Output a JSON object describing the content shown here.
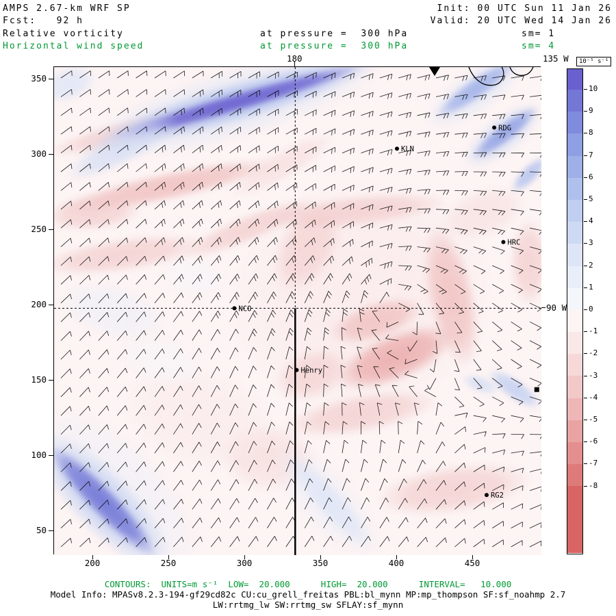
{
  "accent_colors": {
    "green": "#009933",
    "black": "#000000"
  },
  "header": {
    "line1_left": "AMPS 2.67-km WRF SP",
    "line2_left": "Fcst:   92 h",
    "line1_right": "Init: 00 UTC Sun 11 Jan 26",
    "line2_right": "Valid: 20 UTC Wed 14 Jan 26",
    "field1": {
      "label": "Relative vorticity",
      "pressure": "at pressure =  300 hPa",
      "sm": "sm= 1"
    },
    "field2": {
      "label": "Horizontal wind speed",
      "pressure": "at pressure =  300 hPa",
      "sm": "sm= 4"
    }
  },
  "footer": {
    "contours_line": "CONTOURS:  UNITS=m s⁻¹  LOW=  20.000      HIGH=  20.000      INTERVAL=   10.000",
    "model_info_line1": "Model Info: MPASv8.2.3-194-gf29cd82c CU:cu_grell_freitas PBL:bl_mynn MP:mp_thompson SF:sf_noahmp 2.7",
    "model_info_line2": "LW:rrtmg_lw SW:rrtmg_sw SFLAY:sf_mynn"
  },
  "chart_data": {
    "type": "heatmap",
    "title": "Relative vorticity (shaded, 10⁻⁵ s⁻¹) with horizontal wind speed barbs at 300 hPa",
    "x_ticks": [
      200,
      250,
      300,
      350,
      400,
      450
    ],
    "y_ticks": [
      50,
      100,
      150,
      200,
      250,
      300,
      350
    ],
    "x_range": [
      174,
      495
    ],
    "y_range": [
      34,
      358
    ],
    "grid": false,
    "meridians": {
      "top_label": "180",
      "top_label_x": 333,
      "topright_label": "135 W",
      "right_label": "90 W",
      "right_label_y": 198,
      "dashed_vertical_x": 333,
      "dashed_horizontal_y": 198,
      "solid_segment": {
        "x": 333,
        "y_from": 34,
        "y_to": 198
      }
    },
    "colorbar": {
      "title": "10⁻⁵ s⁻¹",
      "tick_labels": [
        10,
        9,
        8,
        7,
        6,
        5,
        4,
        3,
        2,
        1,
        0,
        -1,
        -2,
        -3,
        -4,
        -5,
        -6,
        -7,
        -8
      ],
      "colors": [
        "#6a60cf",
        "#7377d6",
        "#7f8bdc",
        "#8f9fe3",
        "#9fb0e8",
        "#afc0ed",
        "#bfcef1",
        "#cedaf4",
        "#dde5f7",
        "#e9eefa",
        "#f4f6fc",
        "#fdf4f4",
        "#fae7e7",
        "#f6d8d8",
        "#f2c8c8",
        "#eeb6b6",
        "#e9a3a3",
        "#e48f8f",
        "#df7a7a",
        "#d96464"
      ]
    },
    "stations": [
      {
        "name": "RDG",
        "x": 464,
        "y": 318,
        "shape": "circle"
      },
      {
        "name": "KLN",
        "x": 400,
        "y": 304,
        "shape": "circle"
      },
      {
        "name": "HRC",
        "x": 470,
        "y": 242,
        "shape": "circle"
      },
      {
        "name": "NCO",
        "x": 293,
        "y": 198,
        "shape": "circle"
      },
      {
        "name": "Henry",
        "x": 334,
        "y": 157,
        "shape": "circle"
      },
      {
        "name": "RG2",
        "x": 459,
        "y": 74,
        "shape": "circle"
      },
      {
        "name": "",
        "x": 492,
        "y": 144,
        "shape": "square"
      }
    ],
    "coast_outline": {
      "paths": [
        "M606 0 C612 16 626 30 644 26 C656 23 660 9 654 0",
        "M666 0 C669 9 678 15 690 11 C697 8 699 2 700 0"
      ],
      "triangle": "548,0 556,13 564,0"
    },
    "vorticity_blobs": {
      "background_v": -0.6,
      "blobs": [
        [
          0.17,
          0.13,
          0.19,
          0.028,
          -14,
          -4,
          0.75
        ],
        [
          0.23,
          0.245,
          0.23,
          0.03,
          -12,
          -4.5,
          0.75
        ],
        [
          0.08,
          0.3,
          0.1,
          0.035,
          -5,
          -3.5,
          0.7
        ],
        [
          0.14,
          0.385,
          0.17,
          0.035,
          -8,
          -3.5,
          0.7
        ],
        [
          0.4,
          0.33,
          0.15,
          0.028,
          -22,
          -3.5,
          0.7
        ],
        [
          0.47,
          0.2,
          0.12,
          0.03,
          -30,
          -3,
          0.6
        ],
        [
          0.63,
          0.47,
          0.27,
          0.24,
          -15,
          -2,
          0.55
        ],
        [
          0.62,
          0.295,
          0.19,
          0.032,
          -6,
          -4,
          0.7
        ],
        [
          0.52,
          0.37,
          0.06,
          0.1,
          30,
          -3.5,
          0.6
        ],
        [
          0.815,
          0.47,
          0.05,
          0.15,
          -12,
          -4.5,
          0.7
        ],
        [
          0.7,
          0.595,
          0.13,
          0.05,
          -22,
          -5.5,
          0.8
        ],
        [
          0.66,
          0.52,
          0.1,
          0.04,
          -18,
          -5,
          0.7
        ],
        [
          0.63,
          0.71,
          0.16,
          0.04,
          -10,
          -4,
          0.7
        ],
        [
          0.82,
          0.865,
          0.16,
          0.05,
          -8,
          -4,
          0.7
        ],
        [
          0.44,
          0.8,
          0.1,
          0.07,
          5,
          -2.5,
          0.6
        ],
        [
          0.3,
          0.72,
          0.16,
          0.1,
          15,
          -2,
          0.5
        ],
        [
          0.975,
          0.4,
          0.04,
          0.09,
          0,
          -3.5,
          0.7
        ],
        [
          0.53,
          0.63,
          0.08,
          0.05,
          -20,
          -3.5,
          0.6
        ],
        [
          0.88,
          0.3,
          0.09,
          0.05,
          -20,
          -2.5,
          0.55
        ],
        [
          0.12,
          0.5,
          0.11,
          0.055,
          15,
          1,
          0.55
        ],
        [
          0.285,
          0.43,
          0.07,
          0.04,
          10,
          0.7,
          0.5
        ],
        [
          0.22,
          0.6,
          0.09,
          0.05,
          20,
          0.8,
          0.45
        ],
        [
          0.37,
          0.075,
          0.33,
          0.075,
          -16,
          2,
          0.6
        ],
        [
          0.375,
          0.072,
          0.3,
          0.042,
          -16,
          5,
          0.8
        ],
        [
          0.375,
          0.072,
          0.27,
          0.02,
          -16,
          10.5,
          0.95
        ],
        [
          0.14,
          0.165,
          0.13,
          0.035,
          -28,
          3,
          0.7
        ],
        [
          0.03,
          0.035,
          0.06,
          0.035,
          -20,
          2.5,
          0.8
        ],
        [
          0.865,
          0.05,
          0.12,
          0.045,
          -35,
          2.5,
          0.6
        ],
        [
          0.865,
          0.045,
          0.1,
          0.022,
          -35,
          6,
          0.9
        ],
        [
          0.92,
          0.14,
          0.1,
          0.04,
          -38,
          3,
          0.6
        ],
        [
          0.925,
          0.135,
          0.085,
          0.02,
          -38,
          7,
          0.9
        ],
        [
          0.975,
          0.22,
          0.05,
          0.018,
          -45,
          5,
          0.85
        ],
        [
          0.13,
          0.87,
          0.22,
          0.1,
          46,
          1.5,
          0.5
        ],
        [
          0.1,
          0.89,
          0.19,
          0.065,
          46,
          4,
          0.7
        ],
        [
          0.1,
          0.89,
          0.155,
          0.03,
          46,
          9,
          0.95
        ],
        [
          0.56,
          0.89,
          0.15,
          0.06,
          48,
          1,
          0.5
        ],
        [
          0.565,
          0.89,
          0.13,
          0.03,
          48,
          2.5,
          0.8
        ],
        [
          0.945,
          0.66,
          0.065,
          0.022,
          35,
          4.5,
          0.85
        ],
        [
          0.875,
          0.65,
          0.04,
          0.018,
          20,
          3,
          0.7
        ]
      ]
    },
    "wind_field": {
      "grid_step": 27.4,
      "margin_x": 10,
      "margin_y": 16,
      "center": [
        0.68,
        0.47
      ],
      "base_u": 13,
      "base_v": -7,
      "swirl": 26,
      "decay": 300,
      "staff_len": 19
    }
  }
}
